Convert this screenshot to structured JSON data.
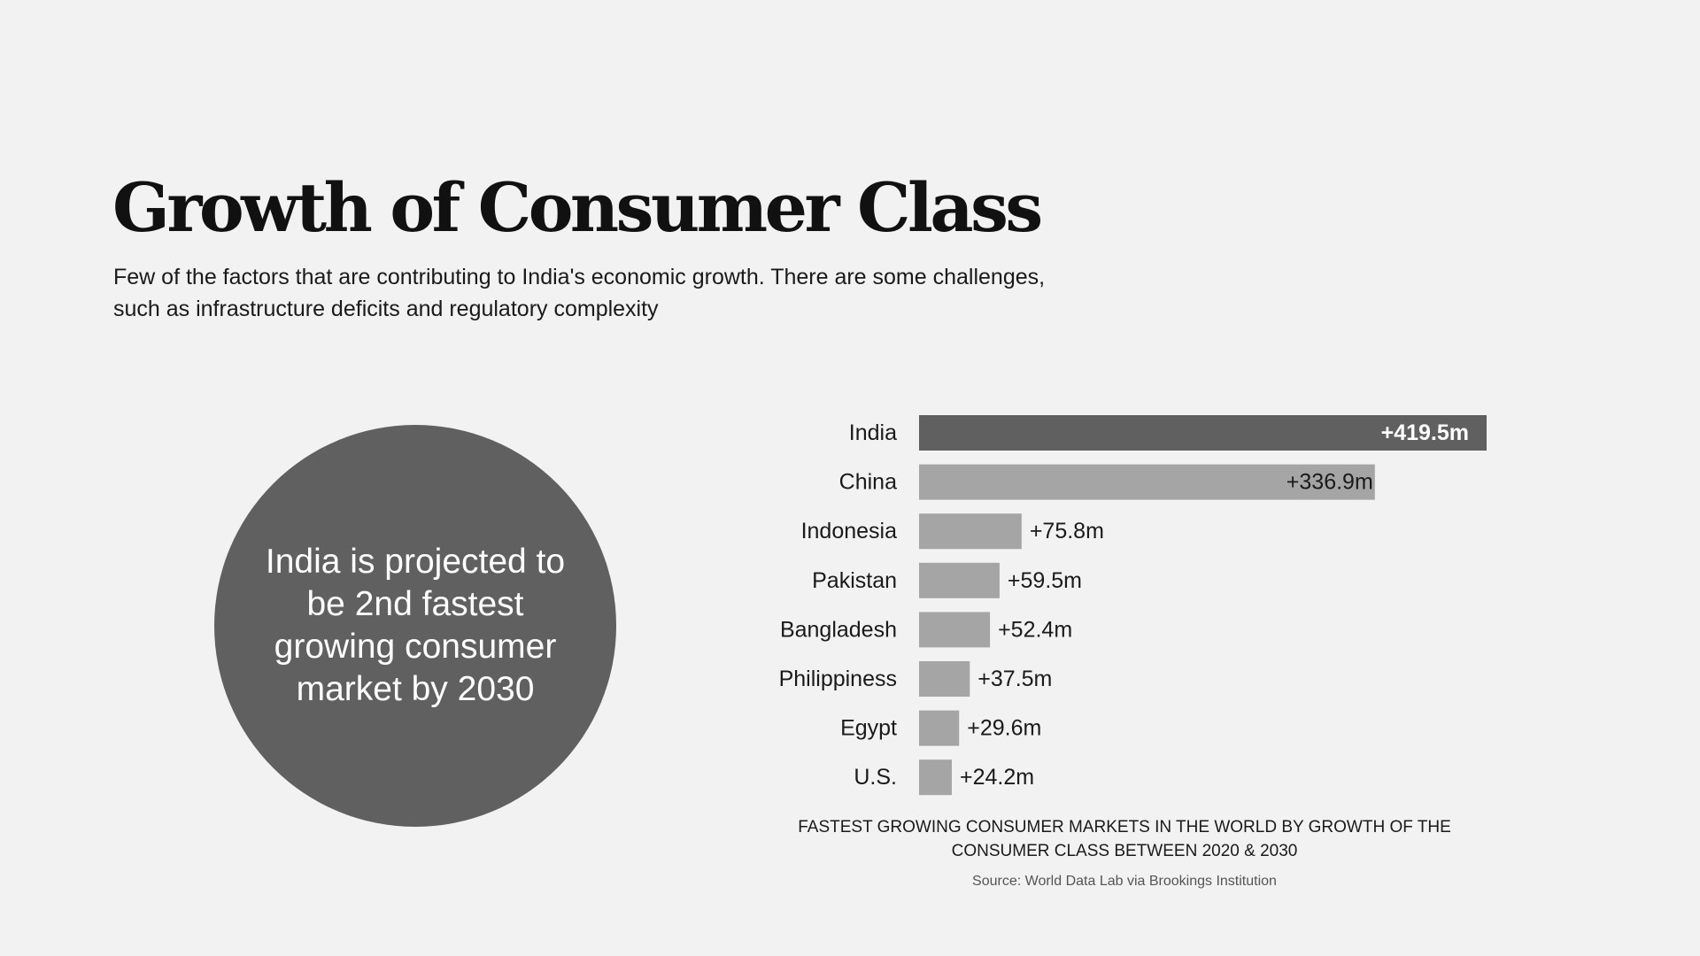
{
  "header": {
    "title": "Growth of Consumer Class",
    "subtitle": "Few of the factors that are contributing to India's economic growth. There are some challenges, such as infrastructure deficits and regulatory complexity"
  },
  "callout": {
    "text": "India is projected to be 2nd fastest growing consumer market by 2030"
  },
  "colors": {
    "background": "#f2f2f2",
    "highlight": "#606060",
    "bar": "#a6a5a5",
    "text": "#1a1a1a"
  },
  "chart_data": {
    "type": "bar",
    "orientation": "horizontal",
    "title": "FASTEST GROWING CONSUMER MARKETS IN THE WORLD BY GROWTH OF THE CONSUMER CLASS BETWEEN 2020 & 2030",
    "source": "Source: World Data Lab via Brookings Institution",
    "unit": "million",
    "categories": [
      "India",
      "China",
      "Indonesia",
      "Pakistan",
      "Bangladesh",
      "Philippiness",
      "Egypt",
      "U.S."
    ],
    "values": [
      419.5,
      336.9,
      75.8,
      59.5,
      52.4,
      37.5,
      29.6,
      24.2
    ],
    "labels": [
      "+419.5m",
      "+336.9m",
      "+75.8m",
      "+59.5m",
      "+52.4m",
      "+37.5m",
      "+29.6m",
      "+24.2m"
    ],
    "highlight_category": "India",
    "xlim": [
      0,
      419.5
    ],
    "grid": false,
    "legend": "none"
  }
}
